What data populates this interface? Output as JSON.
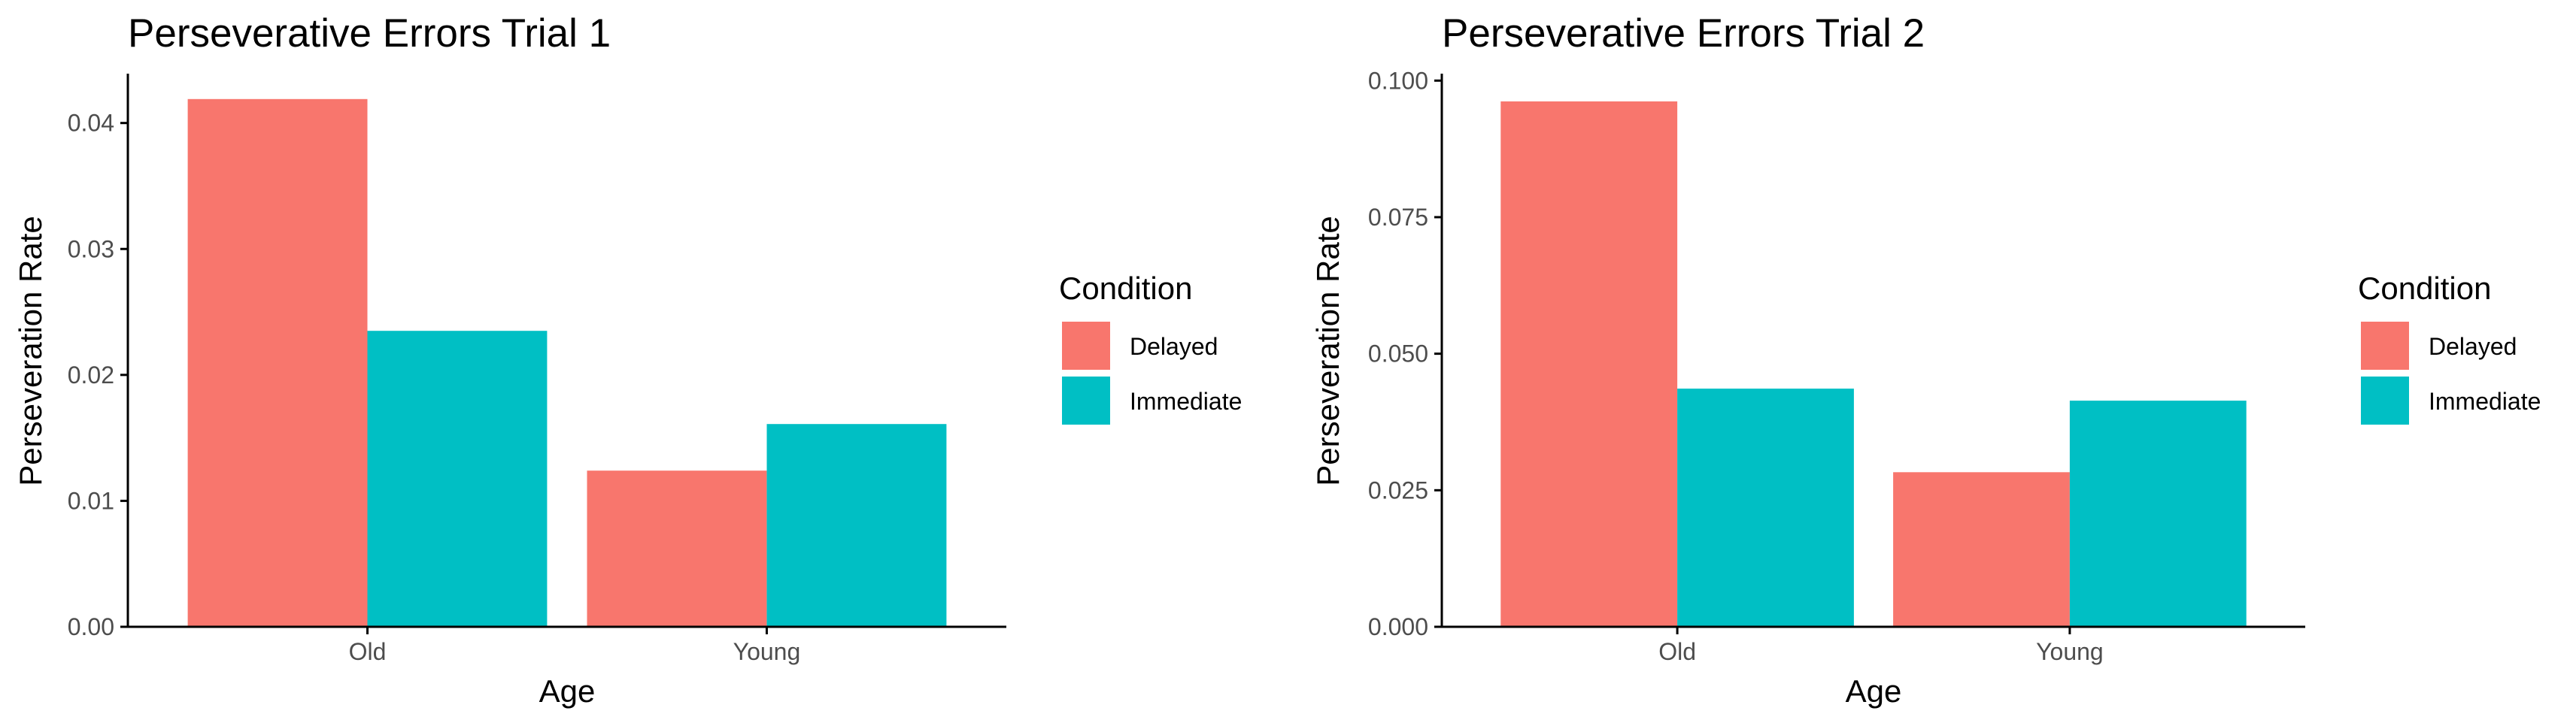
{
  "chart_data": [
    {
      "type": "bar",
      "title": "Perseverative Errors Trial 1",
      "xlabel": "Age",
      "ylabel": "Perseveration Rate",
      "categories": [
        "Old",
        "Young"
      ],
      "series": [
        {
          "name": "Delayed",
          "values": [
            0.0419,
            0.0124
          ]
        },
        {
          "name": "Immediate",
          "values": [
            0.0235,
            0.0161
          ]
        }
      ],
      "ylim": [
        0,
        0.0438
      ],
      "yticks": [
        0,
        0.01,
        0.02,
        0.03,
        0.04
      ],
      "ytick_labels": [
        "0.00",
        "0.01",
        "0.02",
        "0.03",
        "0.04"
      ],
      "legend": {
        "title": "Condition",
        "position": "right"
      },
      "grid": false
    },
    {
      "type": "bar",
      "title": "Perseverative Errors Trial 2",
      "xlabel": "Age",
      "ylabel": "Perseveration Rate",
      "categories": [
        "Old",
        "Young"
      ],
      "series": [
        {
          "name": "Delayed",
          "values": [
            0.0962,
            0.0283
          ]
        },
        {
          "name": "Immediate",
          "values": [
            0.0436,
            0.0414
          ]
        }
      ],
      "ylim": [
        0,
        0.101
      ],
      "yticks": [
        0,
        0.025,
        0.05,
        0.075,
        0.1
      ],
      "ytick_labels": [
        "0.000",
        "0.025",
        "0.050",
        "0.075",
        "0.100"
      ],
      "legend": {
        "title": "Condition",
        "position": "right"
      },
      "grid": false
    }
  ],
  "colors": {
    "Delayed": "#F8766D",
    "Immediate": "#00BFC4",
    "axis": "#000000",
    "tick_text": "#4d4d4d"
  }
}
